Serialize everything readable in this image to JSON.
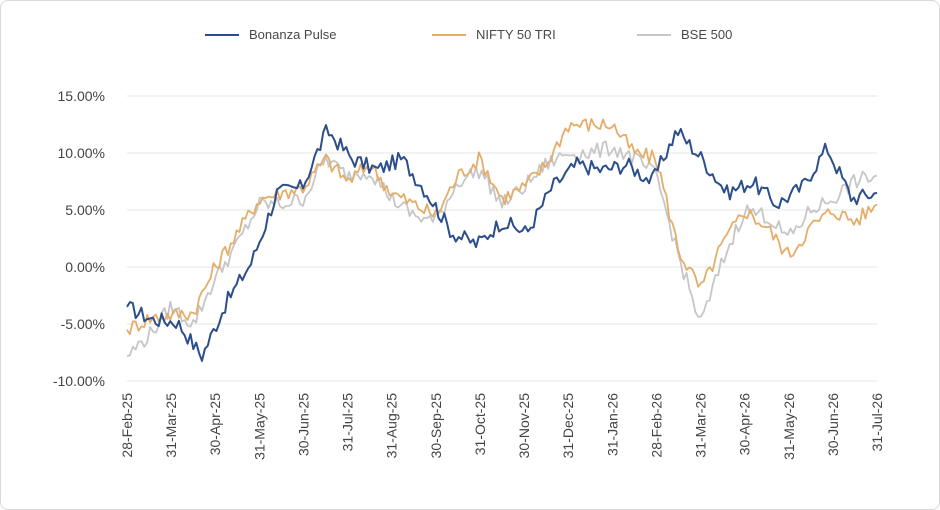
{
  "chart_data": {
    "type": "line",
    "title": "",
    "xlabel": "",
    "ylabel": "",
    "ylim": [
      -10,
      15
    ],
    "y_ticks": [
      "15.00%",
      "10.00%",
      "5.00%",
      "0.00%",
      "-5.00%",
      "-10.00%"
    ],
    "y_tick_values": [
      15,
      10,
      5,
      0,
      -5,
      -10
    ],
    "x_tick_labels": [
      "28-Feb-25",
      "31-Mar-25",
      "30-Apr-25",
      "31-May-25",
      "30-Jun-25",
      "31-Jul-25",
      "31-Aug-25",
      "30-Sep-25",
      "31-Oct-25",
      "30-Nov-25",
      "31-Dec-25",
      "31-Jan-26",
      "28-Feb-26",
      "31-Mar-26",
      "30-Apr-26",
      "31-May-26",
      "30-Jun-26",
      "31-Jul-26"
    ],
    "grid": "horizontal",
    "legend_position": "top-center",
    "series": [
      {
        "name": "Bonanza Pulse",
        "color": "#2c4f8c",
        "values": [
          -3.5,
          -4.6,
          -4.8,
          -7.8,
          -3.0,
          0.5,
          6.5,
          7.0,
          12.0,
          9.5,
          8.5,
          9.5,
          6.5,
          3.0,
          2.0,
          4.0,
          3.0,
          7.0,
          9.0,
          8.5,
          9.0,
          7.5,
          12.0,
          9.5,
          6.5,
          7.5,
          5.5,
          7.0,
          10.5,
          6.0,
          6.5
        ]
      },
      {
        "name": "NIFTY 50 TRI",
        "color": "#e5ad6a",
        "values": [
          -5.5,
          -4.5,
          -4.2,
          -4.0,
          0.0,
          3.0,
          6.0,
          6.5,
          7.0,
          9.5,
          7.5,
          9.0,
          6.5,
          5.5,
          4.5,
          8.0,
          9.5,
          6.0,
          7.0,
          9.0,
          12.5,
          12.5,
          12.5,
          10.0,
          9.5,
          1.5,
          -2.0,
          2.0,
          5.0,
          3.5,
          1.0,
          3.5,
          5.0,
          4.0,
          5.5
        ]
      },
      {
        "name": "BSE 500",
        "color": "#c6c6c6",
        "values": [
          -7.8,
          -6.0,
          -3.5,
          -5.0,
          -1.0,
          2.0,
          5.5,
          5.5,
          6.0,
          9.5,
          8.0,
          8.5,
          6.0,
          4.5,
          4.0,
          7.5,
          8.5,
          5.5,
          7.0,
          9.0,
          10.0,
          10.0,
          10.5,
          9.5,
          8.0,
          1.0,
          -5.0,
          0.5,
          5.0,
          4.5,
          2.5,
          5.0,
          6.0,
          7.5,
          8.0
        ]
      }
    ]
  }
}
